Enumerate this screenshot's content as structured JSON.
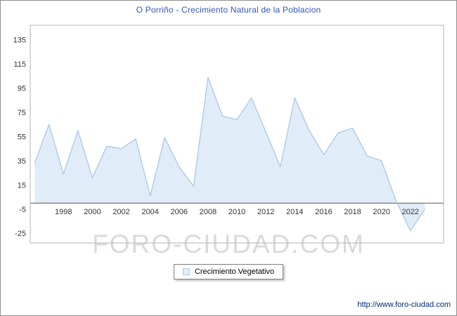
{
  "title": "O Porriño - Crecimiento Natural de la Poblacion",
  "legend": {
    "label": "Crecimiento Vegetativo"
  },
  "watermark": "FORO-CIUDAD.COM",
  "footer_url": "http://www.foro-ciudad.com",
  "colors": {
    "title": "#3355bb",
    "line": "#a8c8e8",
    "fill": "#e0ecf8",
    "axis_text": "#333333",
    "axis_line": "#555555",
    "plot_border": "#b6b6b6",
    "watermark": "#dadada",
    "footer": "#002a80"
  },
  "chart_data": {
    "type": "area",
    "title": "O Porriño - Crecimiento Natural de la Poblacion",
    "xlabel": "",
    "ylabel": "",
    "x": [
      1996,
      1997,
      1998,
      1999,
      2000,
      2001,
      2002,
      2003,
      2004,
      2005,
      2006,
      2007,
      2008,
      2009,
      2010,
      2011,
      2012,
      2013,
      2014,
      2015,
      2016,
      2017,
      2018,
      2019,
      2020,
      2021,
      2022,
      2023
    ],
    "series": [
      {
        "name": "Crecimiento Vegetativo",
        "values": [
          33,
          65,
          24,
          60,
          21,
          47,
          45,
          53,
          6,
          54,
          30,
          14,
          104,
          72,
          69,
          87,
          59,
          30,
          87,
          60,
          40,
          58,
          62,
          39,
          35,
          2,
          -23,
          -5
        ]
      }
    ],
    "yticks": [
      135,
      115,
      95,
      75,
      55,
      35,
      15,
      -5,
      -25
    ],
    "xticks": [
      1998,
      2000,
      2002,
      2004,
      2006,
      2008,
      2010,
      2012,
      2014,
      2016,
      2018,
      2020,
      2022
    ],
    "ylim": [
      -33,
      147
    ],
    "xlim": [
      1995.7,
      2024.3
    ],
    "axis_line_at": 0,
    "grid": false,
    "legend_position": "bottom-center"
  }
}
